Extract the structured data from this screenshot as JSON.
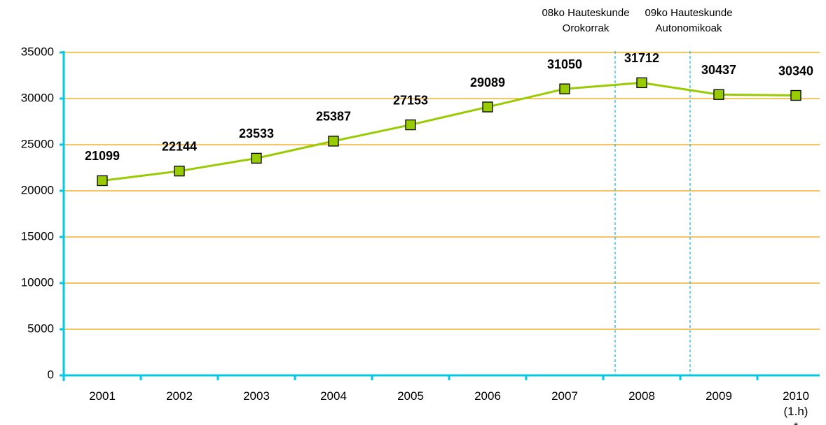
{
  "chart_data": {
    "type": "line",
    "categories": [
      "2001",
      "2002",
      "2003",
      "2004",
      "2005",
      "2006",
      "2007",
      "2008",
      "2009",
      "2010\n(1.h) *"
    ],
    "series": [
      {
        "name": "",
        "color": "#99cc00",
        "values": [
          21099,
          22144,
          23533,
          25387,
          27153,
          29089,
          31050,
          31712,
          30437,
          30340
        ]
      }
    ],
    "ylim": [
      0,
      35000
    ],
    "yticks": [
      0,
      5000,
      10000,
      15000,
      20000,
      25000,
      30000,
      35000
    ],
    "grid": true,
    "annotations": [
      "08ko Hauteskunde\nOrokorrak",
      "09ko Hauteskunde\nAutonomikoak"
    ]
  }
}
